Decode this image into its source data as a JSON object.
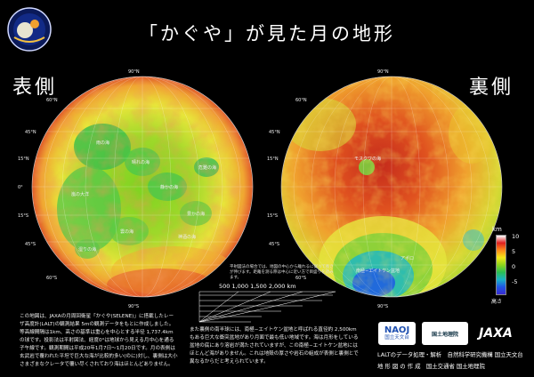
{
  "title": "「かぐや」が見た月の地形",
  "near_side": {
    "label": "表側",
    "lat_labels": [
      "75°N",
      "60°N",
      "45°N",
      "30°N",
      "15°N",
      "0°",
      "15°S",
      "30°S",
      "45°S",
      "60°S",
      "75°S"
    ],
    "region_labels": [
      "雨の海",
      "晴れの海",
      "静かの海",
      "危難の海",
      "豊かの海",
      "嵐の大洋",
      "神酒の海",
      "湿りの海",
      "雲の海"
    ]
  },
  "far_side": {
    "label": "裏側",
    "lat_labels": [
      "75°N",
      "60°N",
      "45°N",
      "30°N",
      "15°N",
      "0°",
      "15°S",
      "30°S",
      "45°S",
      "60°S",
      "75°S"
    ],
    "region_labels": [
      "モスクワの海",
      "南極−エイトケン盆地",
      "アポロ"
    ]
  },
  "legend": {
    "unit": "km",
    "ticks": [
      "10",
      "5",
      "0",
      "-5"
    ],
    "low_label": "高さ",
    "colors": [
      "#ffffff",
      "#e02020",
      "#ff8c1a",
      "#f4e818",
      "#8ed41c",
      "#2bbf55",
      "#19b3c8",
      "#1f55e6",
      "#3a2bd0"
    ]
  },
  "scale": {
    "label": "500  1,000  1,500  2,000 km",
    "note": "平射図法の場合では、地図の中心から離れるに従って長さが伸びます。距離を測る際は中心に近い方で目盛りを読みます。"
  },
  "description_left": "この地図は、JAXAの月周回衛星「かぐや(SELENE)」に搭載したレーザ高度計(LALT)の観測結果 5mの観測データをもとに作成しました。等高線間隔は1km、高さの基準は重心を中心とする半径 1,737.4kmの球です。投影法は平射図法、経度0°は地球から見える月中心を通る子午線です。観測期間は平成20年1月7日〜1月20日です。月の表側は玄武岩で覆われた平坦で巨大な海が比較的多い(のに)対し、裏側は大小さまざまなクレータで覆い尽くされており海はほとんどありません。",
  "description_right": "また裏側の南半球には、南極−エイトケン盆地と呼ばれる直径約 2,500km もある巨大な衝突盆地があり月面で最も低い地域です。海は月形をしている盆地の底にあり溶岩が満たされていますが、この南極−エイトケン盆地にはほとんど海がありません。これは地殻の厚さや岩石の組成が表側と裏側とで異なるからだと考えられています。",
  "logos": {
    "naoj_top": "NAOJ",
    "naoj_bottom": "国立天文台",
    "gsi": "国土地理院",
    "jaxa": "JAXA"
  },
  "credits": {
    "line1": "LALTのデータ処理・解析　自然科学研究機構 国立天文台",
    "line2": "地 形 図 の 作 成　国土交通省 国土地理院"
  }
}
